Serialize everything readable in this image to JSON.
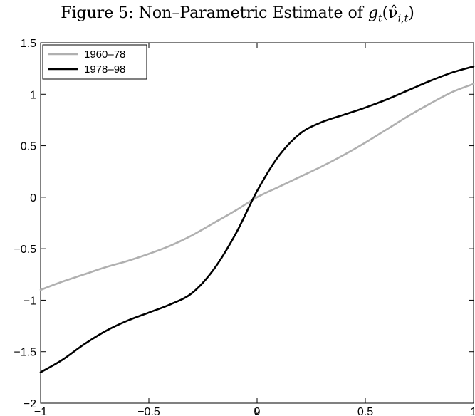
{
  "figure": {
    "title_prefix": "Figure 5: Non–Parametric Estimate of ",
    "title_math_g": "g",
    "title_math_sub_t": "t",
    "title_math_arg": "(ν̂",
    "title_math_sub_it": "i,t",
    "title_math_close": ")"
  },
  "chart_data": {
    "type": "line",
    "xlabel": "ν",
    "ylabel": "",
    "xlim": [
      -1,
      1
    ],
    "ylim": [
      -2,
      1.5
    ],
    "xticks": [
      -1,
      -0.5,
      0,
      0.5,
      1
    ],
    "xtick_labels": [
      "−1",
      "−0.5",
      "0",
      "0.5",
      "1"
    ],
    "yticks": [
      -2,
      -1.5,
      -1,
      -0.5,
      0,
      0.5,
      1,
      1.5
    ],
    "ytick_labels": [
      "−2",
      "−1.5",
      "−1",
      "−0.5",
      "0",
      "0.5",
      "1",
      "1.5"
    ],
    "grid": false,
    "legend_position": "top-left",
    "series": [
      {
        "name": "1960–78",
        "color": "#b0b0b0",
        "x": [
          -1,
          -0.9,
          -0.8,
          -0.7,
          -0.6,
          -0.5,
          -0.4,
          -0.3,
          -0.2,
          -0.1,
          0,
          0.1,
          0.2,
          0.3,
          0.4,
          0.5,
          0.6,
          0.7,
          0.8,
          0.9,
          1
        ],
        "y": [
          -0.9,
          -0.82,
          -0.75,
          -0.68,
          -0.62,
          -0.55,
          -0.47,
          -0.37,
          -0.25,
          -0.13,
          0,
          0.1,
          0.2,
          0.3,
          0.41,
          0.53,
          0.66,
          0.79,
          0.91,
          1.02,
          1.1
        ]
      },
      {
        "name": "1978–98",
        "color": "#000000",
        "x": [
          -1,
          -0.9,
          -0.8,
          -0.7,
          -0.6,
          -0.5,
          -0.4,
          -0.3,
          -0.2,
          -0.1,
          0,
          0.1,
          0.2,
          0.3,
          0.4,
          0.5,
          0.6,
          0.7,
          0.8,
          0.9,
          1
        ],
        "y": [
          -1.7,
          -1.58,
          -1.43,
          -1.3,
          -1.2,
          -1.12,
          -1.04,
          -0.93,
          -0.7,
          -0.36,
          0.06,
          0.4,
          0.62,
          0.73,
          0.8,
          0.87,
          0.95,
          1.04,
          1.13,
          1.21,
          1.27
        ]
      }
    ]
  }
}
